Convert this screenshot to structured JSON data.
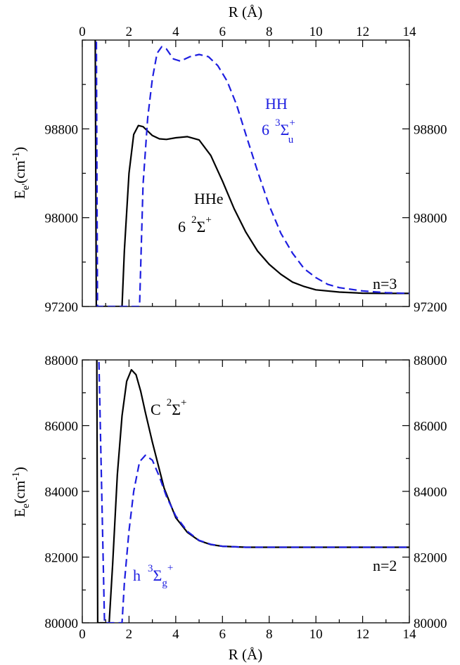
{
  "chart_data": [
    {
      "type": "line",
      "panel": "top",
      "x_range": [
        0,
        14
      ],
      "y_range": [
        97200,
        99600
      ],
      "x_ticks": [
        "0",
        "2",
        "4",
        "6",
        "8",
        "10",
        "12",
        "14"
      ],
      "y_ticks": [
        "97200",
        "98000",
        "98800"
      ],
      "top_axis_title": "R (Å)",
      "ylabel": {
        "base": "E",
        "sub": "e'",
        "unit_open": "(cm",
        "unit_sup": "-1",
        "unit_close": ")"
      },
      "corner_label": "n=3",
      "colors": {
        "hhe": "#000000",
        "hh": "#1e1ee0"
      },
      "series": [
        {
          "key": "hhe",
          "style": "solid",
          "points": [
            [
              0.55,
              99800
            ],
            [
              0.6,
              97200
            ],
            [
              1.7,
              97200
            ],
            [
              1.8,
              97700
            ],
            [
              2.0,
              98400
            ],
            [
              2.2,
              98750
            ],
            [
              2.4,
              98830
            ],
            [
              2.6,
              98820
            ],
            [
              2.8,
              98780
            ],
            [
              3.0,
              98740
            ],
            [
              3.3,
              98710
            ],
            [
              3.6,
              98705
            ],
            [
              4.0,
              98720
            ],
            [
              4.5,
              98730
            ],
            [
              5.0,
              98700
            ],
            [
              5.5,
              98560
            ],
            [
              6.0,
              98330
            ],
            [
              6.5,
              98080
            ],
            [
              7.0,
              97870
            ],
            [
              7.5,
              97700
            ],
            [
              8.0,
              97580
            ],
            [
              8.5,
              97490
            ],
            [
              9.0,
              97420
            ],
            [
              9.5,
              97380
            ],
            [
              10.0,
              97350
            ],
            [
              11.0,
              97330
            ],
            [
              12.0,
              97320
            ],
            [
              13.0,
              97318
            ],
            [
              14.0,
              97318
            ]
          ]
        },
        {
          "key": "hh",
          "style": "dashed",
          "points": [
            [
              0.6,
              99800
            ],
            [
              0.65,
              97200
            ],
            [
              2.45,
              97200
            ],
            [
              2.6,
              98300
            ],
            [
              2.8,
              98900
            ],
            [
              3.0,
              99250
            ],
            [
              3.2,
              99480
            ],
            [
              3.4,
              99540
            ],
            [
              3.6,
              99520
            ],
            [
              3.9,
              99430
            ],
            [
              4.2,
              99410
            ],
            [
              4.6,
              99450
            ],
            [
              5.0,
              99470
            ],
            [
              5.4,
              99450
            ],
            [
              5.8,
              99370
            ],
            [
              6.2,
              99230
            ],
            [
              6.6,
              99020
            ],
            [
              7.0,
              98750
            ],
            [
              7.5,
              98420
            ],
            [
              8.0,
              98110
            ],
            [
              8.5,
              97860
            ],
            [
              9.0,
              97680
            ],
            [
              9.5,
              97540
            ],
            [
              10.0,
              97460
            ],
            [
              10.5,
              97400
            ],
            [
              11.0,
              97370
            ],
            [
              12.0,
              97340
            ],
            [
              13.0,
              97325
            ],
            [
              14.0,
              97318
            ]
          ]
        }
      ],
      "annotations": {
        "hhe": {
          "name": "HHe",
          "number": "6",
          "sup": "2",
          "greek": "Σ",
          "plus": "+"
        },
        "hh": {
          "name": "HH",
          "number": "6",
          "sup": "3",
          "greek": "Σ",
          "plus": "+",
          "sub": "u"
        }
      }
    },
    {
      "type": "line",
      "panel": "bottom",
      "x_range": [
        0,
        14
      ],
      "y_range": [
        80000,
        88000
      ],
      "x_ticks": [
        "0",
        "2",
        "4",
        "6",
        "8",
        "10",
        "12",
        "14"
      ],
      "y_ticks": [
        "80000",
        "82000",
        "84000",
        "86000",
        "88000"
      ],
      "xlabel": "R (Å)",
      "ylabel": {
        "base": "E",
        "sub": "e",
        "unit_open": "(cm",
        "unit_sup": "-1",
        "unit_close": ")"
      },
      "corner_label": "n=2",
      "colors": {
        "c_state": "#000000",
        "h_state": "#1e1ee0"
      },
      "series": [
        {
          "key": "c_state",
          "style": "solid",
          "points": [
            [
              0.62,
              88300
            ],
            [
              0.66,
              80000
            ],
            [
              1.15,
              80000
            ],
            [
              1.3,
              81800
            ],
            [
              1.5,
              84500
            ],
            [
              1.7,
              86300
            ],
            [
              1.9,
              87350
            ],
            [
              2.1,
              87700
            ],
            [
              2.3,
              87550
            ],
            [
              2.5,
              87050
            ],
            [
              2.7,
              86400
            ],
            [
              3.0,
              85500
            ],
            [
              3.5,
              84100
            ],
            [
              4.0,
              83200
            ],
            [
              4.5,
              82750
            ],
            [
              5.0,
              82500
            ],
            [
              5.5,
              82380
            ],
            [
              6.0,
              82330
            ],
            [
              7.0,
              82300
            ],
            [
              8.0,
              82300
            ],
            [
              10.0,
              82300
            ],
            [
              12.0,
              82300
            ],
            [
              14.0,
              82300
            ]
          ]
        },
        {
          "key": "h_state",
          "style": "dashed",
          "points": [
            [
              0.7,
              88300
            ],
            [
              0.95,
              80000
            ],
            [
              1.7,
              80000
            ],
            [
              1.8,
              81200
            ],
            [
              2.0,
              82800
            ],
            [
              2.2,
              84000
            ],
            [
              2.45,
              84900
            ],
            [
              2.7,
              85100
            ],
            [
              3.0,
              84950
            ],
            [
              3.3,
              84450
            ],
            [
              3.6,
              83850
            ],
            [
              4.0,
              83250
            ],
            [
              4.5,
              82780
            ],
            [
              5.0,
              82510
            ],
            [
              5.5,
              82390
            ],
            [
              6.0,
              82330
            ],
            [
              7.0,
              82300
            ],
            [
              8.0,
              82300
            ],
            [
              10.0,
              82300
            ],
            [
              12.0,
              82300
            ],
            [
              14.0,
              82300
            ]
          ]
        }
      ],
      "annotations": {
        "c_state": {
          "letter": "C",
          "sup": "2",
          "greek": "Σ",
          "plus": "+"
        },
        "h_state": {
          "letter": "h",
          "sup": "3",
          "greek": "Σ",
          "sub": "g",
          "plus": "+"
        }
      }
    }
  ]
}
